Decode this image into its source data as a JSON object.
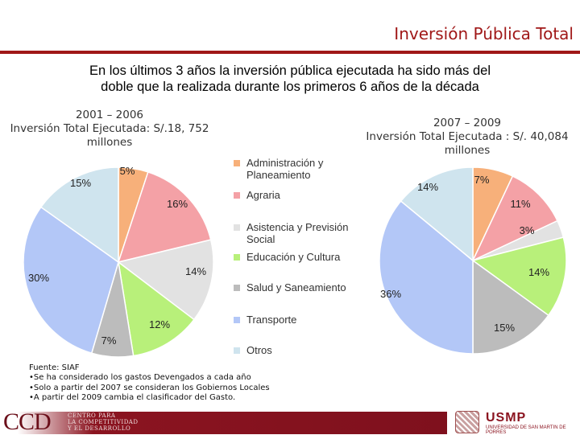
{
  "slide_title": "Inversión Pública Total",
  "subtitle_lines": [
    "En los últimos 3 años la inversión pública ejecutada ha sido más del",
    "doble que la realizada durante los primeros 6 años de la década"
  ],
  "left_heading": [
    "2001 – 2006",
    "Inversión Total Ejecutada:  S/.18, 752",
    "millones"
  ],
  "right_heading": [
    "2007 – 2009",
    "Inversión Total Ejecutada : S/. 40,084",
    "millones"
  ],
  "footnotes": [
    "Fuente: SIAF",
    "•Se ha considerado los gastos Devengados a cada año",
    "•Solo a partir del 2007 se consideran los Gobiernos Locales",
    "•A partir del 2009 cambia el clasificador del Gasto."
  ],
  "logos": {
    "ccd_mark": "CCD",
    "ccd_text": [
      "CENTRO PARA",
      "LA COMPETITIVIDAD",
      "Y EL DESARROLLO"
    ],
    "usmp_name": "USMP",
    "usmp_sub": "UNIVERSIDAD DE SAN MARTIN DE PORRES"
  },
  "chart_data": [
    {
      "type": "pie",
      "title": "2001 – 2006 Inversión Total Ejecutada: S/.18, 752 millones",
      "categories": [
        "Administración y Planeamiento",
        "Agraria",
        "Asistencia y Previsión Social",
        "Educación y Cultura",
        "Salud y Saneamiento",
        "Transporte",
        "Otros"
      ],
      "values": [
        5,
        16,
        14,
        12,
        7,
        30,
        15
      ],
      "labels": [
        "5%",
        "16%",
        "14%",
        "12%",
        "7%",
        "30%",
        "15%"
      ],
      "colors": [
        "#f7b07a",
        "#f4a1a6",
        "#e2e2e2",
        "#b8f07a",
        "#bcbcbc",
        "#b3c7f7",
        "#cfe4ee"
      ]
    },
    {
      "type": "pie",
      "title": "2007 – 2009 Inversión Total Ejecutada : S/. 40,084 millones",
      "categories": [
        "Administración y Planeamiento",
        "Agraria",
        "Asistencia y Previsión Social",
        "Educación y Cultura",
        "Salud y Saneamiento",
        "Transporte",
        "Otros"
      ],
      "values": [
        7,
        11,
        3,
        14,
        15,
        36,
        14
      ],
      "labels": [
        "7%",
        "11%",
        "3%",
        "14%",
        "15%",
        "36%",
        "14%"
      ],
      "colors": [
        "#f7b07a",
        "#f4a1a6",
        "#e2e2e2",
        "#b8f07a",
        "#bcbcbc",
        "#b3c7f7",
        "#cfe4ee"
      ]
    }
  ],
  "legend": {
    "placement": "center",
    "items": [
      {
        "label": "Administración y Planeamiento",
        "color": "#f7b07a"
      },
      {
        "label": "Agraria",
        "color": "#f4a1a6"
      },
      {
        "label": "Asistencia y Previsión Social",
        "color": "#e2e2e2"
      },
      {
        "label": "Educación y Cultura",
        "color": "#b8f07a"
      },
      {
        "label": "Salud y Saneamiento",
        "color": "#bcbcbc"
      },
      {
        "label": "Transporte",
        "color": "#b3c7f7"
      },
      {
        "label": "Otros",
        "color": "#cfe4ee"
      }
    ]
  }
}
